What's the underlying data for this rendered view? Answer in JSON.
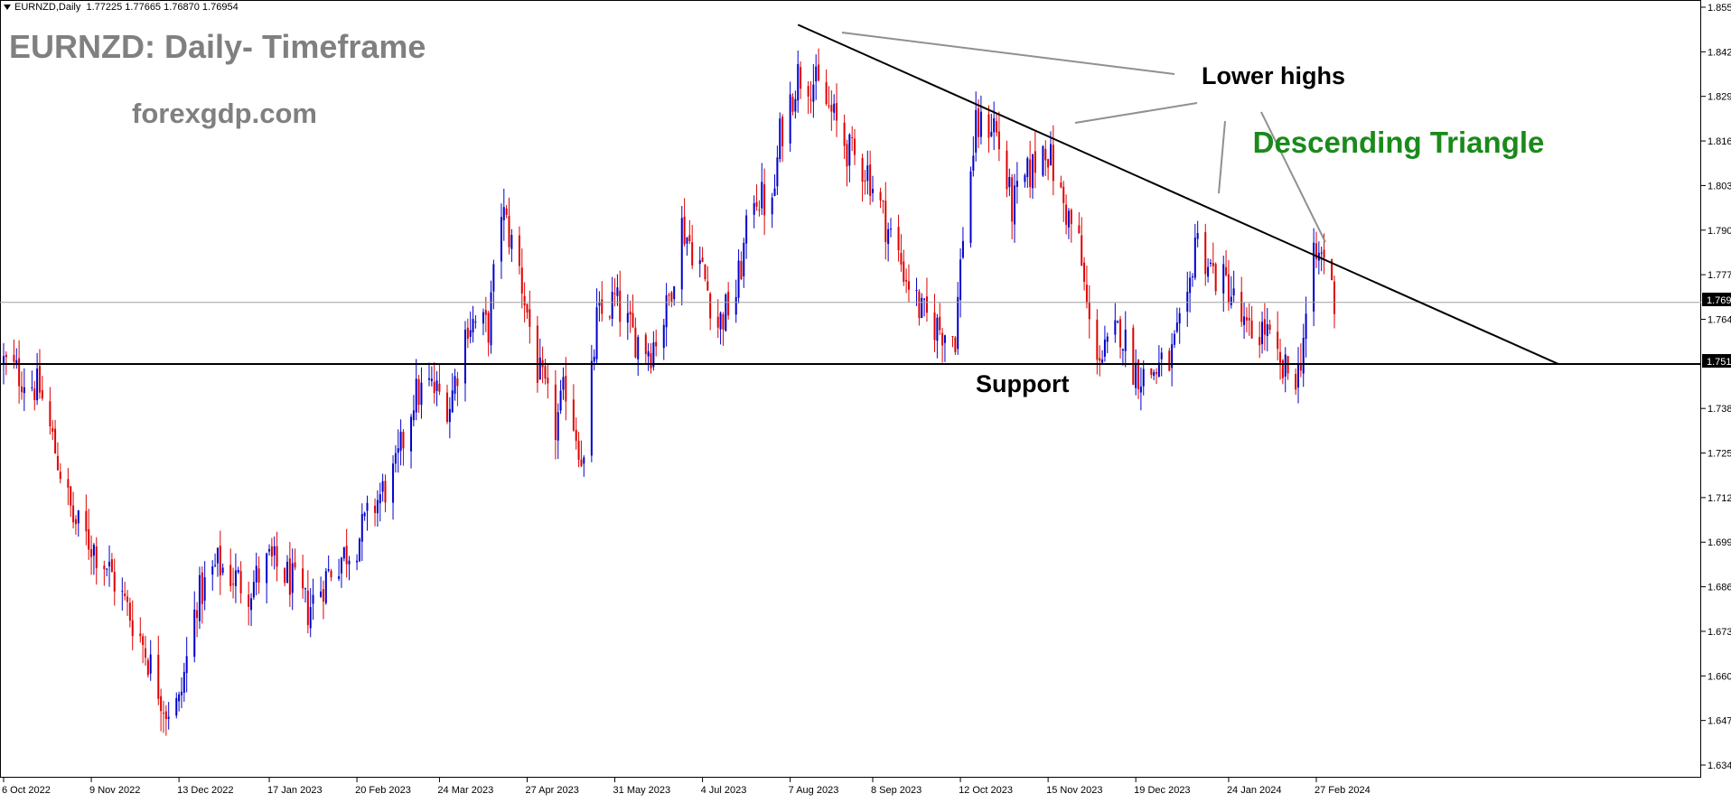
{
  "header": {
    "symbol": "EURNZD,Daily",
    "ohlc": "1.77225 1.77665 1.76870 1.76954"
  },
  "chart_data": {
    "type": "candlestick",
    "title": "EURNZD: Daily- Timeframe",
    "subtitle": "forexgdp.com",
    "pattern_label": "Descending Triangle",
    "ylim": [
      1.6346,
      1.8556
    ],
    "y_ticks": [
      "1.85560",
      "1.84260",
      "1.82960",
      "1.81660",
      "1.80360",
      "1.79060",
      "1.77760",
      "1.76460",
      "1.75155",
      "1.73860",
      "1.72560",
      "1.71260",
      "1.69960",
      "1.68660",
      "1.67360",
      "1.66060",
      "1.64760",
      "1.63460"
    ],
    "x_ticks": [
      "6 Oct 2022",
      "9 Nov 2022",
      "13 Dec 2022",
      "17 Jan 2023",
      "20 Feb 2023",
      "24 Mar 2023",
      "27 Apr 2023",
      "31 May 2023",
      "4 Jul 2023",
      "7 Aug 2023",
      "8 Sep 2023",
      "12 Oct 2023",
      "15 Nov 2023",
      "19 Dec 2023",
      "24 Jan 2024",
      "27 Feb 2024"
    ],
    "current_price": "1.76954",
    "support": {
      "price": 1.75155,
      "label": "Support",
      "price_label": "1.75155"
    },
    "resistance_line": {
      "start": {
        "date": "2023-08-10",
        "price": 1.8505
      },
      "end": {
        "date": "2024-05-31",
        "price": 1.7515
      }
    },
    "annotations": {
      "lower_highs": "Lower highs"
    },
    "colors": {
      "bull": "#0000cc",
      "bear": "#e00000",
      "text_gray": "#808080",
      "triangle_green": "#1a8a1a",
      "line": "#000000",
      "current_line": "#a0a0a0"
    },
    "price_path": [
      [
        "2022-10-06",
        1.752
      ],
      [
        "2022-10-20",
        1.744
      ],
      [
        "2022-11-02",
        1.706
      ],
      [
        "2022-11-15",
        1.693
      ],
      [
        "2022-11-28",
        1.672
      ],
      [
        "2022-12-08",
        1.651
      ],
      [
        "2022-12-13",
        1.652
      ],
      [
        "2022-12-20",
        1.683
      ],
      [
        "2022-12-28",
        1.693
      ],
      [
        "2023-01-09",
        1.686
      ],
      [
        "2023-01-17",
        1.694
      ],
      [
        "2023-01-25",
        1.689
      ],
      [
        "2023-02-01",
        1.68
      ],
      [
        "2023-02-10",
        1.692
      ],
      [
        "2023-02-20",
        1.7
      ],
      [
        "2023-02-28",
        1.712
      ],
      [
        "2023-03-07",
        1.72
      ],
      [
        "2023-03-14",
        1.742
      ],
      [
        "2023-03-20",
        1.745
      ],
      [
        "2023-03-28",
        1.74
      ],
      [
        "2023-04-04",
        1.764
      ],
      [
        "2023-04-12",
        1.762
      ],
      [
        "2023-04-17",
        1.797
      ],
      [
        "2023-04-24",
        1.779
      ],
      [
        "2023-05-01",
        1.75
      ],
      [
        "2023-05-08",
        1.733
      ],
      [
        "2023-05-12",
        1.745
      ],
      [
        "2023-05-19",
        1.722
      ],
      [
        "2023-05-24",
        1.764
      ],
      [
        "2023-05-31",
        1.77
      ],
      [
        "2023-06-07",
        1.76
      ],
      [
        "2023-06-14",
        1.756
      ],
      [
        "2023-06-20",
        1.767
      ],
      [
        "2023-06-26",
        1.792
      ],
      [
        "2023-07-03",
        1.781
      ],
      [
        "2023-07-10",
        1.763
      ],
      [
        "2023-07-17",
        1.772
      ],
      [
        "2023-07-24",
        1.802
      ],
      [
        "2023-07-31",
        1.796
      ],
      [
        "2023-08-03",
        1.818
      ],
      [
        "2023-08-10",
        1.836
      ],
      [
        "2023-08-16",
        1.834
      ],
      [
        "2023-08-22",
        1.826
      ],
      [
        "2023-08-30",
        1.813
      ],
      [
        "2023-09-06",
        1.808
      ],
      [
        "2023-09-13",
        1.793
      ],
      [
        "2023-09-20",
        1.779
      ],
      [
        "2023-09-27",
        1.766
      ],
      [
        "2023-10-04",
        1.762
      ],
      [
        "2023-10-10",
        1.76
      ],
      [
        "2023-10-13",
        1.79
      ],
      [
        "2023-10-18",
        1.82
      ],
      [
        "2023-10-25",
        1.822
      ],
      [
        "2023-11-01",
        1.797
      ],
      [
        "2023-11-07",
        1.806
      ],
      [
        "2023-11-14",
        1.816
      ],
      [
        "2023-11-20",
        1.8
      ],
      [
        "2023-11-27",
        1.786
      ],
      [
        "2023-12-01",
        1.762
      ],
      [
        "2023-12-06",
        1.753
      ],
      [
        "2023-12-13",
        1.762
      ],
      [
        "2023-12-18",
        1.751
      ],
      [
        "2023-12-22",
        1.748
      ],
      [
        "2024-01-01",
        1.752
      ],
      [
        "2024-01-08",
        1.767
      ],
      [
        "2024-01-11",
        1.789
      ],
      [
        "2024-01-18",
        1.778
      ],
      [
        "2024-01-24",
        1.774
      ],
      [
        "2024-01-31",
        1.76
      ],
      [
        "2024-02-07",
        1.762
      ],
      [
        "2024-02-13",
        1.749
      ],
      [
        "2024-02-20",
        1.749
      ],
      [
        "2024-02-26",
        1.781
      ],
      [
        "2024-03-01",
        1.784
      ],
      [
        "2024-03-05",
        1.77
      ]
    ]
  }
}
